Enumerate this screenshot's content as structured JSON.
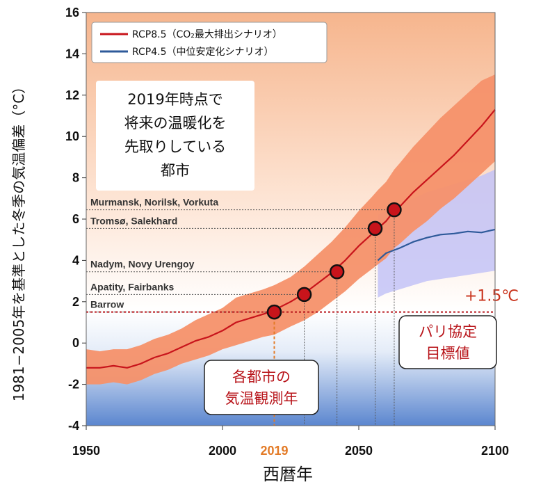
{
  "chart_data": {
    "type": "line",
    "xlabel": "西暦年",
    "ylabel": "1981−2005年を基準とした冬季の気温偏差（°C）",
    "xlim": [
      1950,
      2100
    ],
    "ylim": [
      -4,
      16
    ],
    "xticks": [
      1950,
      2000,
      2050,
      2100
    ],
    "yticks": [
      -4,
      -2,
      0,
      2,
      4,
      6,
      8,
      10,
      12,
      14,
      16
    ],
    "highlight_year": {
      "label": "2019",
      "value": 2019,
      "color": "#e37b27"
    },
    "series": [
      {
        "name": "RCP8.5（CO₂最大排出シナリオ）",
        "color": "#c8141b",
        "band_color": "#f5916a",
        "x": [
          1950,
          1955,
          1960,
          1965,
          1970,
          1975,
          1980,
          1985,
          1990,
          1995,
          2000,
          2005,
          2010,
          2015,
          2019,
          2025,
          2030,
          2035,
          2040,
          2045,
          2050,
          2055,
          2057,
          2060,
          2063,
          2065,
          2070,
          2075,
          2080,
          2085,
          2090,
          2095,
          2100
        ],
        "values": [
          -1.2,
          -1.2,
          -1.1,
          -1.2,
          -1.0,
          -0.7,
          -0.5,
          -0.2,
          0.1,
          0.3,
          0.6,
          1.0,
          1.2,
          1.4,
          1.6,
          2.0,
          2.4,
          2.9,
          3.4,
          4.0,
          4.7,
          5.3,
          5.55,
          5.9,
          6.4,
          6.6,
          7.3,
          7.9,
          8.5,
          9.1,
          9.8,
          10.5,
          11.3
        ],
        "upper": [
          -0.3,
          -0.4,
          -0.3,
          -0.3,
          -0.1,
          0.2,
          0.4,
          0.7,
          1.1,
          1.4,
          1.7,
          2.2,
          2.4,
          2.6,
          2.8,
          3.2,
          3.7,
          4.3,
          4.9,
          5.6,
          6.4,
          7.1,
          7.4,
          7.8,
          8.4,
          8.7,
          9.5,
          10.2,
          10.9,
          11.5,
          12.1,
          12.7,
          13.0
        ],
        "lower": [
          -2.0,
          -2.0,
          -1.9,
          -2.0,
          -1.8,
          -1.5,
          -1.3,
          -1.0,
          -0.8,
          -0.6,
          -0.3,
          -0.1,
          0.1,
          0.3,
          0.4,
          0.8,
          1.1,
          1.5,
          2.0,
          2.5,
          3.1,
          3.6,
          3.8,
          4.1,
          4.6,
          4.8,
          5.4,
          5.9,
          6.5,
          7.0,
          7.6,
          8.2,
          8.8
        ]
      },
      {
        "name": "RCP4.5（中位安定化シナリオ）",
        "color": "#2e5a9a",
        "band_color": "#c3c3f7",
        "x": [
          2057,
          2060,
          2065,
          2070,
          2075,
          2080,
          2085,
          2090,
          2095,
          2100
        ],
        "values": [
          4.0,
          4.35,
          4.6,
          4.9,
          5.1,
          5.25,
          5.3,
          5.4,
          5.35,
          5.5
        ],
        "upper": [
          6.2,
          6.4,
          6.7,
          7.0,
          7.3,
          7.5,
          7.7,
          7.9,
          8.1,
          8.4
        ],
        "lower": [
          2.2,
          2.4,
          2.6,
          2.8,
          3.0,
          3.1,
          3.2,
          3.3,
          3.4,
          3.5
        ]
      }
    ],
    "observed_cities": [
      {
        "label": "Barrow",
        "level": 1.5,
        "year": 2019
      },
      {
        "label": "Apatity, Fairbanks",
        "level": 2.35,
        "year": 2030
      },
      {
        "label": "Nadym, Novy Urengoy",
        "level": 3.45,
        "year": 2042
      },
      {
        "label": "Tromsø, Salekhard",
        "level": 5.55,
        "year": 2056
      },
      {
        "label": "Murmansk, Norilsk, Vorkuta",
        "level": 6.45,
        "year": 2063
      }
    ],
    "threshold": {
      "label": "+1.5℃",
      "value": 1.5,
      "color": "#b8141a"
    },
    "annotations": {
      "main_box": [
        "2019年時点で",
        "将来の温暖化を",
        "先取りしている",
        "都市"
      ],
      "paris_box": [
        "パリ協定",
        "目標値"
      ],
      "obs_box": [
        "各都市の",
        "気温観測年"
      ]
    },
    "legend_position": "top-left",
    "grid": false
  }
}
